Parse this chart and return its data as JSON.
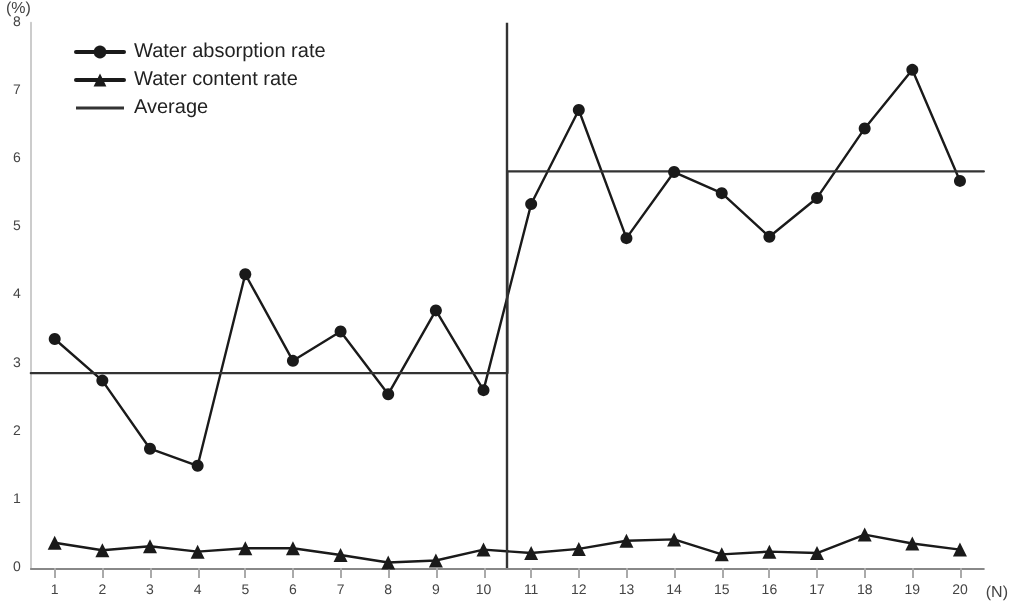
{
  "chart_data": {
    "type": "line",
    "ylabel": "(%)",
    "xlabel": "(N)",
    "xlim": [
      0.5,
      20.5
    ],
    "xticks": [
      1,
      2,
      3,
      4,
      5,
      6,
      7,
      8,
      9,
      10,
      11,
      12,
      13,
      14,
      15,
      16,
      17,
      18,
      19,
      20
    ],
    "ylim": [
      0,
      8
    ],
    "yticks": [
      0,
      1,
      2,
      3,
      4,
      5,
      6,
      7,
      8
    ],
    "grid": false,
    "legend": "top left",
    "series": [
      {
        "name": "Water absorption rate",
        "color": "#1a1a1a",
        "marker": "circle",
        "x": [
          1,
          2,
          3,
          4,
          5,
          6,
          7,
          8,
          9,
          10,
          11,
          12,
          13,
          14,
          15,
          16,
          17,
          18,
          19,
          20
        ],
        "values": [
          3.36,
          2.75,
          1.75,
          1.5,
          4.31,
          3.04,
          3.47,
          2.55,
          3.78,
          2.61,
          5.34,
          6.72,
          4.84,
          5.81,
          5.5,
          4.86,
          5.43,
          6.45,
          7.31,
          5.68
        ]
      },
      {
        "name": "Water content rate",
        "color": "#1a1a1a",
        "marker": "triangle",
        "x": [
          1,
          2,
          3,
          4,
          5,
          6,
          7,
          8,
          9,
          10,
          11,
          12,
          13,
          14,
          15,
          16,
          17,
          18,
          19,
          20
        ],
        "values": [
          0.37,
          0.26,
          0.32,
          0.24,
          0.29,
          0.29,
          0.19,
          0.08,
          0.11,
          0.27,
          0.22,
          0.28,
          0.4,
          0.42,
          0.2,
          0.24,
          0.22,
          0.49,
          0.36,
          0.27
        ]
      },
      {
        "name": "Average",
        "color": "#333333",
        "marker": "none",
        "x": [
          0.5,
          10.5,
          10.5,
          20.5
        ],
        "values": [
          2.86,
          2.86,
          5.82,
          5.82
        ]
      }
    ],
    "ref_lines": [
      {
        "axis": "x",
        "value": 10.5,
        "label": null,
        "color": "#333333"
      }
    ]
  }
}
